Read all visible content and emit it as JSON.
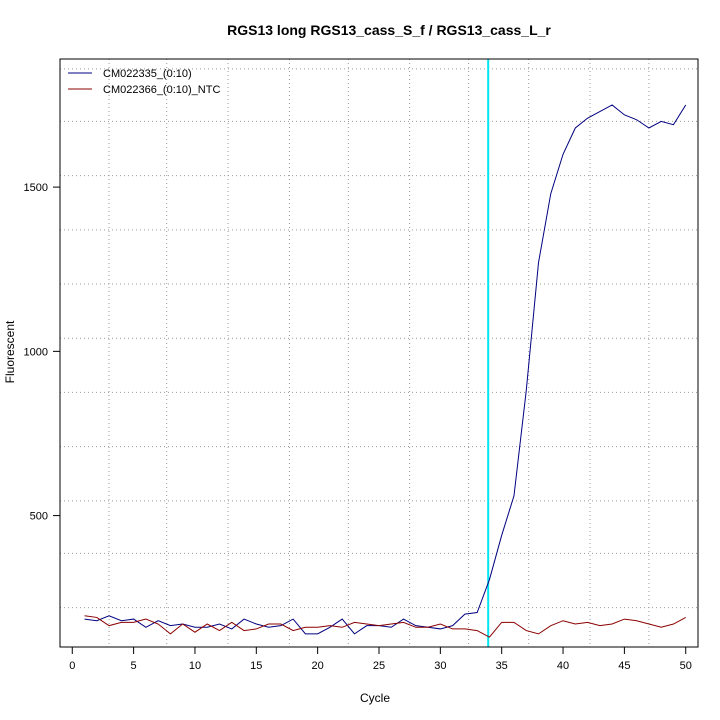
{
  "chart_data": {
    "type": "line",
    "title": "RGS13 long RGS13_cass_S_f / RGS13_cass_L_r",
    "xlabel": "Cycle",
    "ylabel": "Fluorescent",
    "xlim": [
      -1,
      51
    ],
    "ylim": [
      100,
      1890
    ],
    "x_ticks": [
      0,
      5,
      10,
      15,
      20,
      25,
      30,
      35,
      40,
      45,
      50
    ],
    "y_ticks": [
      500,
      1000,
      1500
    ],
    "y_grid": [
      220,
      385,
      545,
      710,
      875,
      1040,
      1205,
      1370,
      1535,
      1700,
      1860
    ],
    "x_grid": [
      3,
      7.7,
      12.7,
      17.7,
      22.5,
      27.5,
      32.3,
      37.2,
      42.2,
      47
    ],
    "threshold_x": 33.9,
    "threshold_color": "#00E5EE",
    "grid": true,
    "legend_position": "top-left",
    "x": [
      1,
      2,
      3,
      4,
      5,
      6,
      7,
      8,
      9,
      10,
      11,
      12,
      13,
      14,
      15,
      16,
      17,
      18,
      19,
      20,
      21,
      22,
      23,
      24,
      25,
      26,
      27,
      28,
      29,
      30,
      31,
      32,
      33,
      34,
      35,
      36,
      37,
      38,
      39,
      40,
      41,
      42,
      43,
      44,
      45,
      46,
      47,
      48,
      49,
      50
    ],
    "series": [
      {
        "name": "CM022335_(0:10)",
        "color": "#000080",
        "values": [
          185,
          180,
          195,
          180,
          185,
          160,
          180,
          165,
          170,
          160,
          160,
          170,
          155,
          185,
          170,
          160,
          165,
          185,
          140,
          140,
          160,
          185,
          140,
          165,
          165,
          160,
          185,
          165,
          160,
          155,
          165,
          200,
          205,
          305,
          440,
          560,
          880,
          1270,
          1480,
          1600,
          1680,
          1710,
          1730,
          1750,
          1720,
          1705,
          1680,
          1700,
          1690,
          1750
        ]
      },
      {
        "name": "CM022366_(0:10)_NTC",
        "color": "#8B0000",
        "values": [
          195,
          190,
          165,
          175,
          175,
          185,
          170,
          140,
          170,
          145,
          170,
          150,
          175,
          150,
          155,
          170,
          170,
          150,
          160,
          160,
          165,
          160,
          175,
          170,
          165,
          170,
          175,
          160,
          160,
          170,
          155,
          155,
          150,
          130,
          175,
          175,
          150,
          140,
          165,
          180,
          170,
          175,
          165,
          170,
          185,
          180,
          170,
          160,
          170,
          190
        ]
      }
    ]
  }
}
